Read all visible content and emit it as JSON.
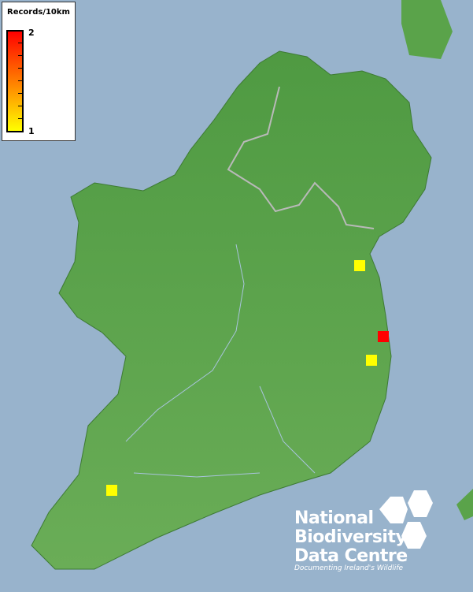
{
  "legend": {
    "title": "Records/10km",
    "max_label": "2",
    "min_label": "1",
    "max_color": "#ff0000",
    "min_color": "#ffff00"
  },
  "records": [
    {
      "value": 1,
      "color": "#ffff00"
    },
    {
      "value": 2,
      "color": "#ff0000"
    },
    {
      "value": 1,
      "color": "#ffff00"
    },
    {
      "value": 1,
      "color": "#ffff00"
    }
  ],
  "logo": {
    "line1": "National",
    "line2": "Biodiversity",
    "line3": "Data Centre",
    "tagline": "Documenting Ireland's Wildlife"
  },
  "colors": {
    "sea": "#98b3cc",
    "land": "#5aa34a"
  }
}
